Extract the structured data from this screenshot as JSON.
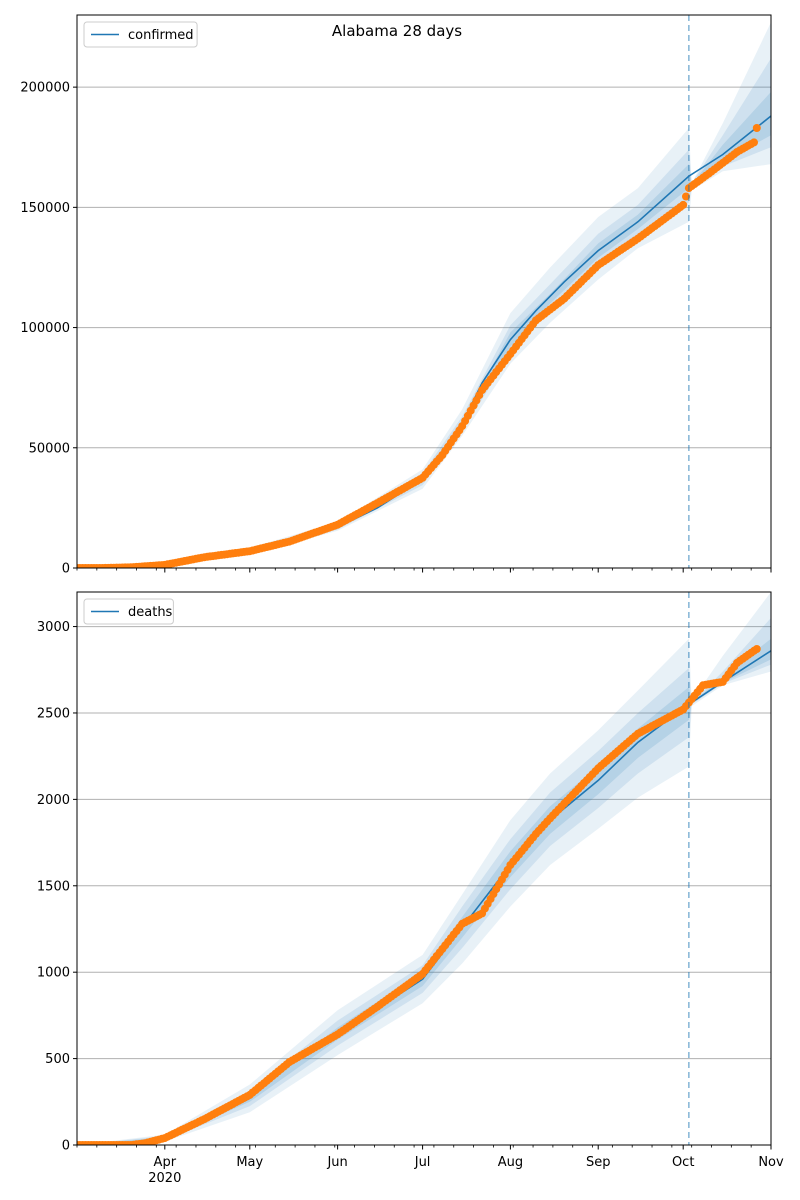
{
  "figure_title": "Alabama 28 days",
  "colors": {
    "model_line": "#1f77b4",
    "observed_points": "#ff7f0e",
    "band": "#1f77b4",
    "forecast_marker": "#1f77b4",
    "grid": "#b0b0b0",
    "axis": "#000000",
    "background": "#ffffff"
  },
  "x_axis": {
    "type": "date",
    "range": [
      "2020-03-01",
      "2020-11-01"
    ],
    "major_ticks": [
      {
        "date": "2020-04-01",
        "label": "Apr"
      },
      {
        "date": "2020-05-01",
        "label": "May"
      },
      {
        "date": "2020-06-01",
        "label": "Jun"
      },
      {
        "date": "2020-07-01",
        "label": "Jul"
      },
      {
        "date": "2020-08-01",
        "label": "Aug"
      },
      {
        "date": "2020-09-01",
        "label": "Sep"
      },
      {
        "date": "2020-10-01",
        "label": "Oct"
      },
      {
        "date": "2020-11-01",
        "label": "Nov"
      }
    ],
    "year_label": "2020",
    "minor_ticks": "weekly"
  },
  "forecast_start": "2020-10-03",
  "chart_data": [
    {
      "type": "line",
      "legend": [
        "confirmed"
      ],
      "legend_position": "top-left",
      "grid": "horizontal",
      "ylim": [
        0,
        230000
      ],
      "yticks": [
        0,
        50000,
        100000,
        150000,
        200000
      ],
      "ytick_labels": [
        "0",
        "50000",
        "100000",
        "150000",
        "200000"
      ],
      "model_line": {
        "name": "confirmed",
        "x": [
          "2020-03-01",
          "2020-03-15",
          "2020-04-01",
          "2020-04-15",
          "2020-05-01",
          "2020-05-15",
          "2020-06-01",
          "2020-06-15",
          "2020-07-01",
          "2020-07-08",
          "2020-07-15",
          "2020-07-22",
          "2020-08-01",
          "2020-08-10",
          "2020-08-20",
          "2020-09-01",
          "2020-09-15",
          "2020-10-03",
          "2020-10-15",
          "2020-11-01"
        ],
        "y": [
          0,
          300,
          2000,
          4500,
          7000,
          10500,
          17000,
          25000,
          37000,
          46000,
          60000,
          77000,
          95000,
          107000,
          119000,
          132000,
          144000,
          163000,
          172000,
          188000
        ]
      },
      "uncertainty_bands": [
        {
          "level": "outer",
          "x": [
            "2020-03-01",
            "2020-04-01",
            "2020-05-01",
            "2020-06-01",
            "2020-07-01",
            "2020-07-15",
            "2020-08-01",
            "2020-08-15",
            "2020-09-01",
            "2020-09-15",
            "2020-10-03",
            "2020-10-04",
            "2020-10-15",
            "2020-11-01"
          ],
          "lower": [
            0,
            1500,
            5500,
            15500,
            33000,
            55000,
            85000,
            102000,
            120000,
            133000,
            144000,
            157000,
            165000,
            168000
          ],
          "upper": [
            0,
            2600,
            8500,
            19000,
            41000,
            66000,
            106000,
            125000,
            146000,
            158000,
            183000,
            160000,
            185000,
            227000
          ]
        },
        {
          "level": "middle",
          "x": [
            "2020-03-01",
            "2020-04-01",
            "2020-05-01",
            "2020-06-01",
            "2020-07-01",
            "2020-07-15",
            "2020-08-01",
            "2020-08-15",
            "2020-09-01",
            "2020-09-15",
            "2020-10-03",
            "2020-10-04",
            "2020-10-15",
            "2020-11-01"
          ],
          "lower": [
            0,
            1700,
            6000,
            16000,
            34500,
            57000,
            89000,
            107000,
            125000,
            138000,
            152000,
            158000,
            167000,
            175000
          ],
          "upper": [
            0,
            2400,
            8000,
            18200,
            39500,
            63000,
            101000,
            118000,
            139000,
            151000,
            174000,
            160000,
            180000,
            212000
          ]
        },
        {
          "level": "inner",
          "x": [
            "2020-03-01",
            "2020-04-01",
            "2020-05-01",
            "2020-06-01",
            "2020-07-01",
            "2020-07-15",
            "2020-08-01",
            "2020-08-15",
            "2020-09-01",
            "2020-09-15",
            "2020-10-03",
            "2020-10-04",
            "2020-10-15",
            "2020-11-01"
          ],
          "lower": [
            0,
            1850,
            6500,
            16500,
            36000,
            59000,
            92000,
            110000,
            129000,
            141000,
            158000,
            159000,
            169000,
            180000
          ],
          "upper": [
            0,
            2200,
            7500,
            17500,
            38000,
            61000,
            98000,
            114000,
            135000,
            147000,
            168000,
            159500,
            176000,
            198000
          ]
        }
      ],
      "observed": {
        "x": [
          "2020-03-01",
          "2020-03-10",
          "2020-03-20",
          "2020-04-01",
          "2020-04-15",
          "2020-05-01",
          "2020-05-15",
          "2020-06-01",
          "2020-06-15",
          "2020-07-01",
          "2020-07-08",
          "2020-07-15",
          "2020-07-22",
          "2020-08-01",
          "2020-08-10",
          "2020-08-20",
          "2020-09-01",
          "2020-09-15",
          "2020-10-01",
          "2020-10-03",
          "2020-10-10",
          "2020-10-20",
          "2020-10-26",
          "2020-10-27"
        ],
        "y": [
          0,
          0,
          300,
          1300,
          4500,
          7000,
          11000,
          18000,
          27000,
          37500,
          47000,
          59000,
          74000,
          89000,
          103000,
          112000,
          126000,
          137000,
          151000,
          158000,
          164000,
          173000,
          177000,
          183000
        ]
      }
    },
    {
      "type": "line",
      "legend": [
        "deaths"
      ],
      "legend_position": "top-left",
      "grid": "horizontal",
      "ylim": [
        0,
        3200
      ],
      "yticks": [
        0,
        500,
        1000,
        1500,
        2000,
        2500,
        3000
      ],
      "ytick_labels": [
        "0",
        "500",
        "1000",
        "1500",
        "2000",
        "2500",
        "3000"
      ],
      "model_line": {
        "name": "deaths",
        "x": [
          "2020-03-01",
          "2020-03-25",
          "2020-04-01",
          "2020-04-15",
          "2020-05-01",
          "2020-05-15",
          "2020-06-01",
          "2020-06-15",
          "2020-07-01",
          "2020-07-15",
          "2020-08-01",
          "2020-08-15",
          "2020-09-01",
          "2020-09-15",
          "2020-10-03",
          "2020-10-15",
          "2020-11-01"
        ],
        "y": [
          0,
          15,
          40,
          140,
          270,
          460,
          640,
          790,
          960,
          1260,
          1620,
          1880,
          2110,
          2330,
          2550,
          2680,
          2860
        ]
      },
      "uncertainty_bands": [
        {
          "level": "outer",
          "x": [
            "2020-03-01",
            "2020-04-01",
            "2020-05-01",
            "2020-06-01",
            "2020-07-01",
            "2020-07-15",
            "2020-08-01",
            "2020-08-15",
            "2020-09-01",
            "2020-09-15",
            "2020-10-03",
            "2020-10-04",
            "2020-10-15",
            "2020-11-01"
          ],
          "lower": [
            0,
            20,
            190,
            520,
            820,
            1050,
            1380,
            1620,
            1830,
            2010,
            2190,
            2540,
            2660,
            2740
          ],
          "upper": [
            0,
            60,
            350,
            780,
            1100,
            1450,
            1880,
            2150,
            2400,
            2630,
            2930,
            2570,
            2830,
            3200
          ]
        },
        {
          "level": "middle",
          "x": [
            "2020-03-01",
            "2020-04-01",
            "2020-05-01",
            "2020-06-01",
            "2020-07-01",
            "2020-07-15",
            "2020-08-01",
            "2020-08-15",
            "2020-09-01",
            "2020-09-15",
            "2020-10-03",
            "2020-10-04",
            "2020-10-15",
            "2020-11-01"
          ],
          "lower": [
            0,
            28,
            225,
            575,
            880,
            1140,
            1480,
            1730,
            1950,
            2150,
            2360,
            2550,
            2670,
            2780
          ],
          "upper": [
            0,
            52,
            315,
            720,
            1040,
            1380,
            1770,
            2040,
            2280,
            2500,
            2760,
            2560,
            2740,
            3050
          ]
        },
        {
          "level": "inner",
          "x": [
            "2020-03-01",
            "2020-04-01",
            "2020-05-01",
            "2020-06-01",
            "2020-07-01",
            "2020-07-15",
            "2020-08-01",
            "2020-08-15",
            "2020-09-01",
            "2020-09-15",
            "2020-10-03",
            "2020-10-04",
            "2020-10-15",
            "2020-11-01"
          ],
          "lower": [
            0,
            34,
            250,
            610,
            920,
            1200,
            1550,
            1800,
            2030,
            2240,
            2460,
            2555,
            2675,
            2810
          ],
          "upper": [
            0,
            46,
            290,
            680,
            1000,
            1320,
            1700,
            1960,
            2190,
            2410,
            2650,
            2558,
            2710,
            2930
          ]
        }
      ],
      "observed": {
        "x": [
          "2020-03-01",
          "2020-03-20",
          "2020-03-25",
          "2020-04-01",
          "2020-04-15",
          "2020-05-01",
          "2020-05-15",
          "2020-06-01",
          "2020-06-15",
          "2020-07-01",
          "2020-07-15",
          "2020-07-22",
          "2020-08-01",
          "2020-08-10",
          "2020-08-15",
          "2020-09-01",
          "2020-09-15",
          "2020-10-01",
          "2020-10-03",
          "2020-10-08",
          "2020-10-15",
          "2020-10-20",
          "2020-10-26",
          "2020-10-27"
        ],
        "y": [
          0,
          0,
          10,
          40,
          150,
          290,
          480,
          640,
          800,
          990,
          1280,
          1340,
          1620,
          1800,
          1890,
          2180,
          2380,
          2520,
          2560,
          2660,
          2680,
          2790,
          2860,
          2870
        ]
      }
    }
  ]
}
